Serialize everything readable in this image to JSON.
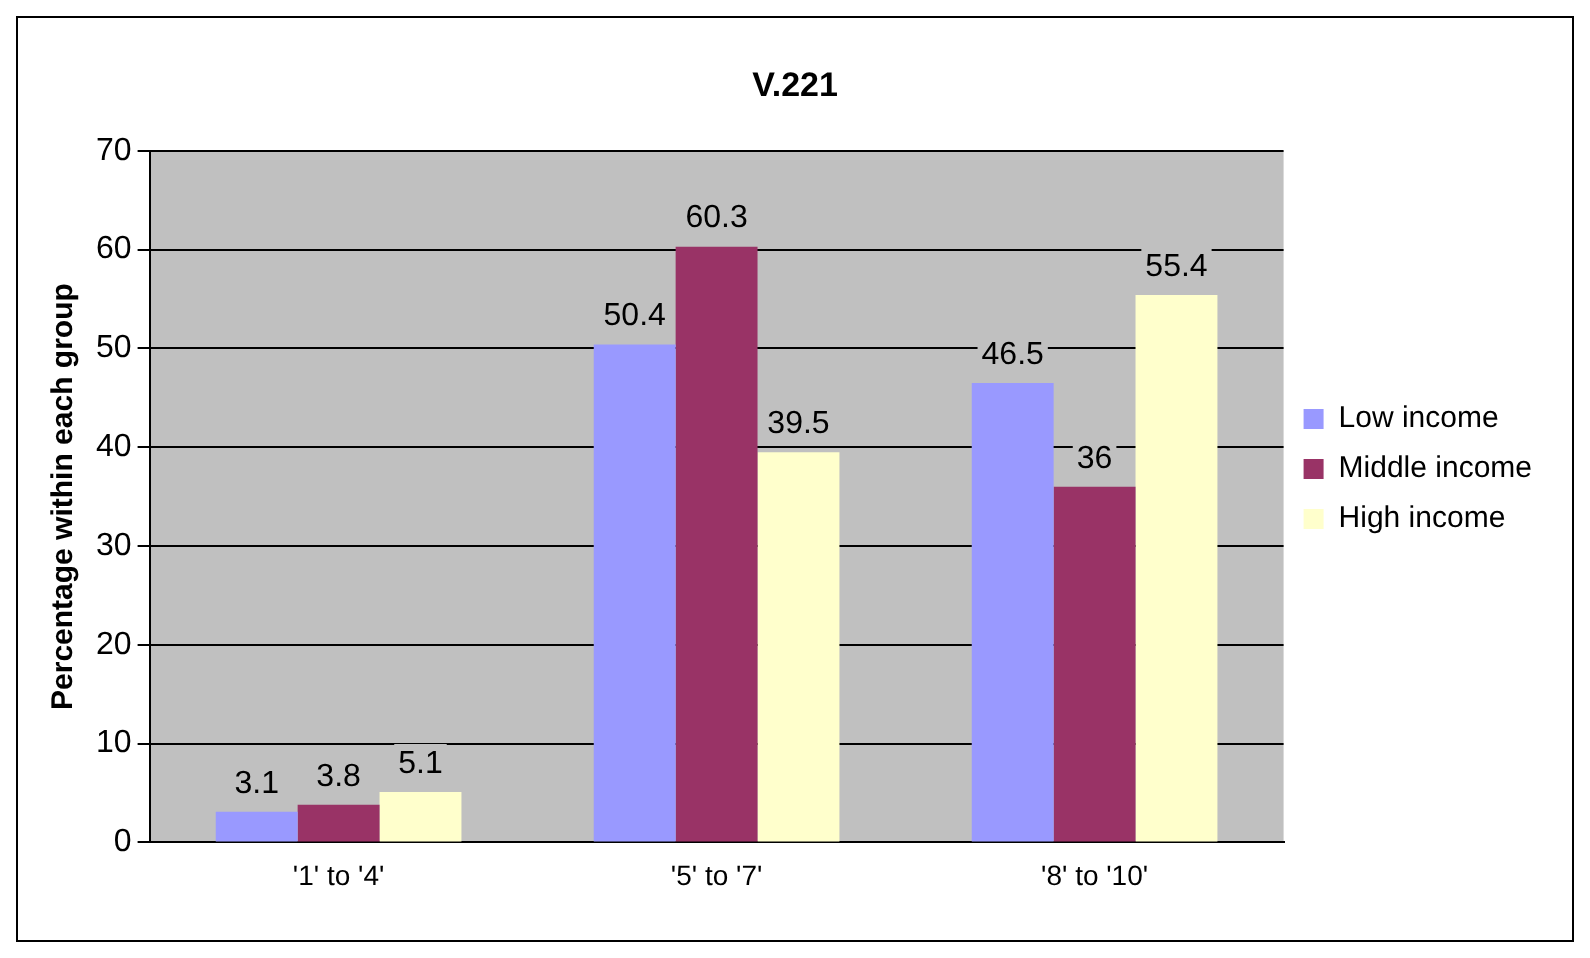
{
  "chart_data": {
    "type": "bar",
    "title": "V.221",
    "ylabel": "Percentage within each group",
    "categories": [
      "'1' to '4'",
      "'5' to '7'",
      "'8' to '10'"
    ],
    "series": [
      {
        "name": "Low income",
        "color": "#9999ff",
        "values": [
          3.1,
          50.4,
          46.5
        ]
      },
      {
        "name": "Middle income",
        "color": "#993366",
        "values": [
          3.8,
          60.3,
          36
        ]
      },
      {
        "name": "High income",
        "color": "#ffffcc",
        "values": [
          5.1,
          39.5,
          55.4
        ]
      }
    ],
    "ylim": [
      0,
      70
    ],
    "yticks": [
      0,
      10,
      20,
      30,
      40,
      50,
      60,
      70
    ],
    "grid": "y",
    "legend": "right",
    "data_labels": true
  }
}
